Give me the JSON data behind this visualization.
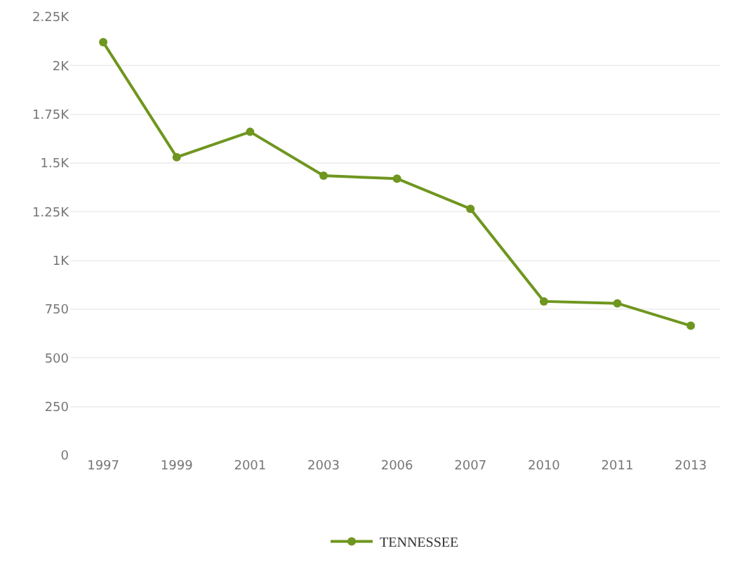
{
  "chart_data": {
    "type": "line",
    "categories": [
      "1997",
      "1999",
      "2001",
      "2003",
      "2006",
      "2007",
      "2010",
      "2011",
      "2013"
    ],
    "series": [
      {
        "name": "TENNESSEE",
        "color": "#6f961f",
        "values": [
          2120,
          1530,
          1660,
          1435,
          1420,
          1265,
          790,
          780,
          665
        ]
      }
    ],
    "ylim": [
      0,
      2250
    ],
    "yticks": [
      0,
      250,
      500,
      750,
      {
        "value": 1000,
        "label": "1K"
      },
      {
        "value": 1250,
        "label": "1.25K"
      },
      {
        "value": 1500,
        "label": "1.5K"
      },
      {
        "value": 1750,
        "label": "1.75K"
      },
      {
        "value": 2000,
        "label": "2K"
      },
      {
        "value": 2250,
        "label": "2.25K"
      }
    ],
    "grid": "y",
    "legend": "bottom",
    "marker": "circle",
    "line_style": "solid"
  }
}
